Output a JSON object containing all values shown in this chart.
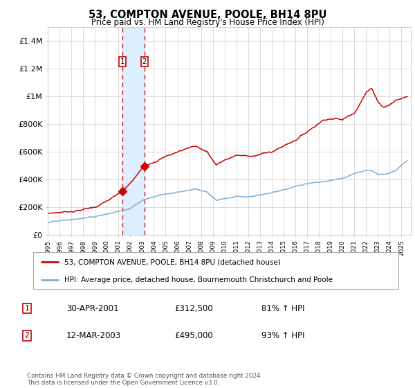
{
  "title": "53, COMPTON AVENUE, POOLE, BH14 8PU",
  "subtitle": "Price paid vs. HM Land Registry's House Price Index (HPI)",
  "legend_line1": "53, COMPTON AVENUE, POOLE, BH14 8PU (detached house)",
  "legend_line2": "HPI: Average price, detached house, Bournemouth Christchurch and Poole",
  "transaction1_label": "1",
  "transaction1_date": "30-APR-2001",
  "transaction1_price": "£312,500",
  "transaction1_hpi": "81% ↑ HPI",
  "transaction2_label": "2",
  "transaction2_date": "12-MAR-2003",
  "transaction2_price": "£495,000",
  "transaction2_hpi": "93% ↑ HPI",
  "transaction1_x": 2001.33,
  "transaction2_x": 2003.21,
  "transaction1_y": 312500,
  "transaction2_y": 495000,
  "shade_x1": 2001.33,
  "shade_x2": 2003.21,
  "red_line_color": "#cc0000",
  "blue_line_color": "#7aaed6",
  "shade_color": "#ddeeff",
  "dashed_color": "#cc0000",
  "grid_color": "#cccccc",
  "background_color": "#ffffff",
  "footnote": "Contains HM Land Registry data © Crown copyright and database right 2024.\nThis data is licensed under the Open Government Licence v3.0.",
  "yticks": [
    0,
    200000,
    400000,
    600000,
    800000,
    1000000,
    1200000,
    1400000
  ],
  "ylabels": [
    "£0",
    "£200K",
    "£400K",
    "£600K",
    "£800K",
    "£1M",
    "£1.2M",
    "£1.4M"
  ],
  "ylim": [
    0,
    1500000
  ],
  "xmin": 1995.0,
  "xmax": 2025.8
}
